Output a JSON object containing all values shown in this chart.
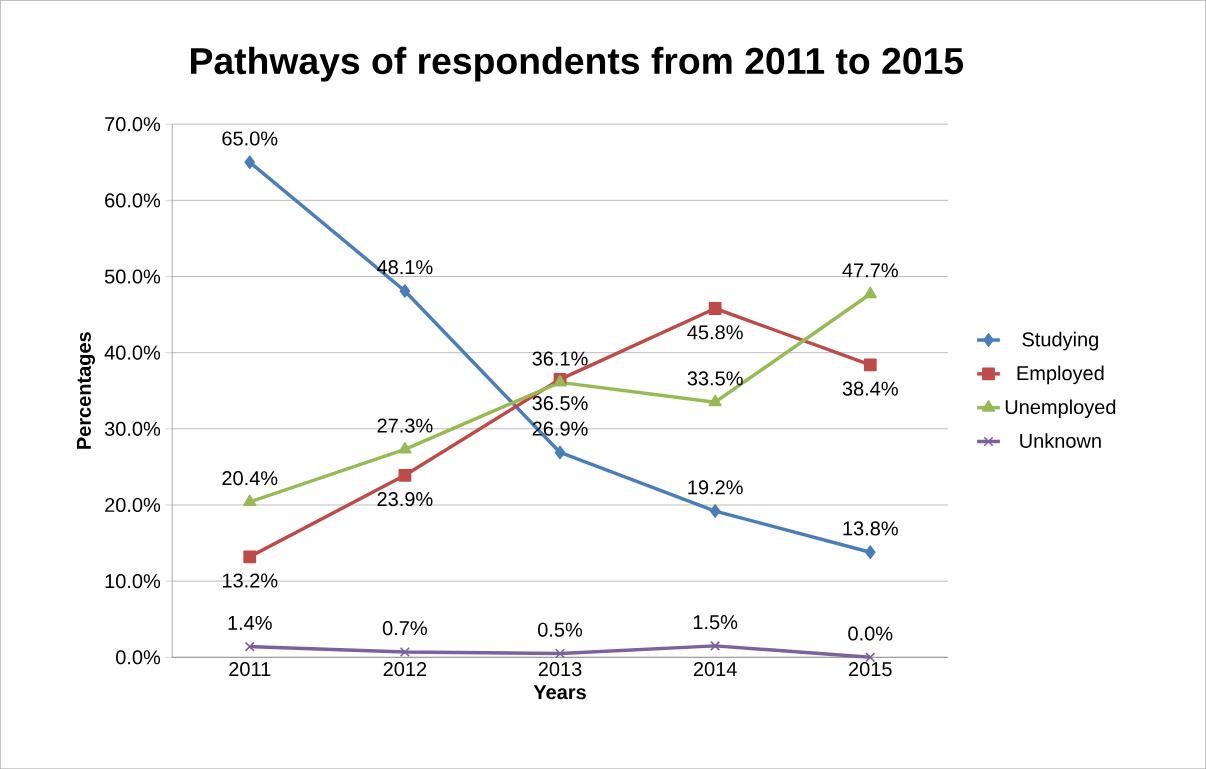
{
  "chart_data": {
    "type": "line",
    "title": "Pathways of respondents  from  2011 to 2015",
    "xlabel": "Years",
    "ylabel": "Percentages",
    "categories": [
      "2011",
      "2012",
      "2013",
      "2014",
      "2015"
    ],
    "series": [
      {
        "name": "Studying",
        "color": "#4a7ebb",
        "marker": "diamond",
        "values": [
          65.0,
          48.1,
          26.9,
          19.2,
          13.8
        ],
        "value_labels": [
          "65.0%",
          "48.1%",
          "26.9%",
          "19.2%",
          "13.8%"
        ]
      },
      {
        "name": "Employed",
        "color": "#be4b48",
        "marker": "square",
        "values": [
          13.2,
          23.9,
          36.5,
          45.8,
          38.4
        ],
        "value_labels": [
          "13.2%",
          "23.9%",
          "36.5%",
          "45.8%",
          "38.4%"
        ]
      },
      {
        "name": "Unemployed",
        "color": "#98b954",
        "marker": "triangle",
        "values": [
          20.4,
          27.3,
          36.1,
          33.5,
          47.7
        ],
        "value_labels": [
          "20.4%",
          "27.3%",
          "36.1%",
          "33.5%",
          "47.7%"
        ]
      },
      {
        "name": "Unknown",
        "color": "#7d60a0",
        "marker": "cross",
        "values": [
          1.4,
          0.7,
          0.5,
          1.5,
          0.0
        ],
        "value_labels": [
          "1.4%",
          "0.7%",
          "0.5%",
          "1.5%",
          "0.0%"
        ]
      }
    ],
    "ylim": [
      0,
      70
    ],
    "yticks": [
      {
        "value": 0,
        "label": "0.0%"
      },
      {
        "value": 10,
        "label": "10.0%"
      },
      {
        "value": 20,
        "label": "20.0%"
      },
      {
        "value": 30,
        "label": "30.0%"
      },
      {
        "value": 40,
        "label": "40.0%"
      },
      {
        "value": 50,
        "label": "50.0%"
      },
      {
        "value": 60,
        "label": "60.0%"
      },
      {
        "value": 70,
        "label": "70.0%"
      }
    ],
    "grid": "y",
    "legend": "right",
    "line_style": "solid"
  }
}
